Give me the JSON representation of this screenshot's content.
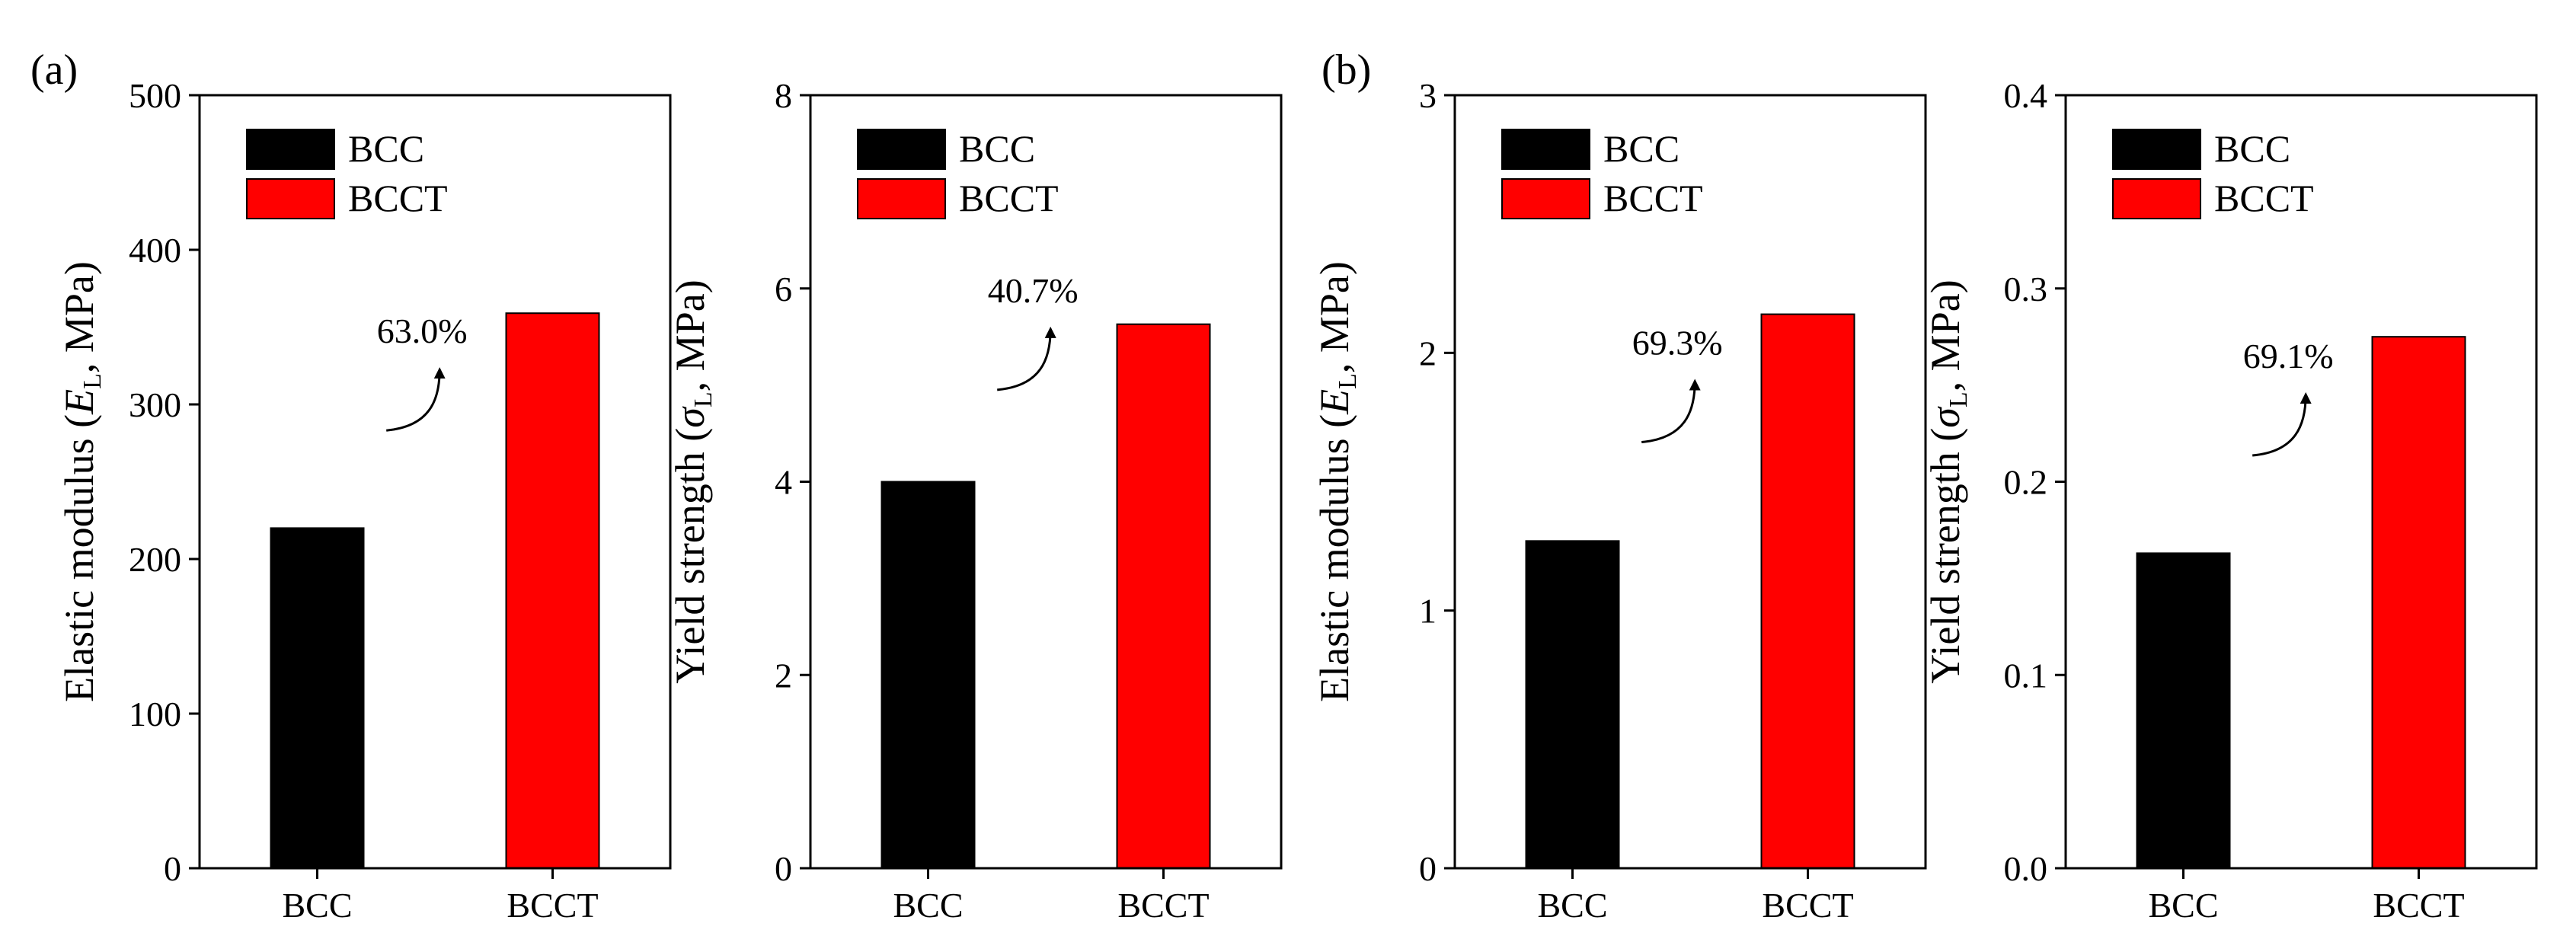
{
  "panel_labels": [
    "(a)",
    "(b)"
  ],
  "colors": {
    "BCC": "#000000",
    "BCCT": "#ff0000"
  },
  "chart_data": [
    {
      "type": "bar",
      "panel": "(a)",
      "categories": [
        "BCC",
        "BCCT"
      ],
      "values": [
        220,
        359
      ],
      "ylim": [
        0,
        500
      ],
      "yticks": [
        "0",
        "100",
        "200",
        "300",
        "400",
        "500"
      ],
      "ylabel": {
        "prefix": "Elastic modulus (",
        "symbol": "E",
        "subscript": "L",
        "suffix": ", MPa)"
      },
      "legend": [
        "BCC",
        "BCCT"
      ],
      "legend_position": "top-left",
      "annotation": "63.0%"
    },
    {
      "type": "bar",
      "panel": "(a)",
      "categories": [
        "BCC",
        "BCCT"
      ],
      "values": [
        4.0,
        5.63
      ],
      "ylim": [
        0,
        8
      ],
      "yticks": [
        "0",
        "2",
        "4",
        "6",
        "8"
      ],
      "ylabel": {
        "prefix": "Yield strength (",
        "symbol": "σ",
        "subscript": "L",
        "suffix": ", MPa)"
      },
      "legend": [
        "BCC",
        "BCCT"
      ],
      "legend_position": "top-left",
      "annotation": "40.7%"
    },
    {
      "type": "bar",
      "panel": "(b)",
      "categories": [
        "BCC",
        "BCCT"
      ],
      "values": [
        1.27,
        2.15
      ],
      "ylim": [
        0,
        3
      ],
      "yticks": [
        "0",
        "1",
        "2",
        "3"
      ],
      "ylabel": {
        "prefix": "Elastic modulus (",
        "symbol": "E",
        "subscript": "L",
        "suffix": ", MPa)"
      },
      "legend": [
        "BCC",
        "BCCT"
      ],
      "legend_position": "top-left",
      "annotation": "69.3%"
    },
    {
      "type": "bar",
      "panel": "(b)",
      "categories": [
        "BCC",
        "BCCT"
      ],
      "values": [
        0.163,
        0.275
      ],
      "ylim": [
        0,
        0.4
      ],
      "yticks": [
        "0.0",
        "0.1",
        "0.2",
        "0.3",
        "0.4"
      ],
      "ylabel": {
        "prefix": "Yield strength (",
        "symbol": "σ",
        "subscript": "L",
        "suffix": ", MPa)"
      },
      "legend": [
        "BCC",
        "BCCT"
      ],
      "legend_position": "top-left",
      "annotation": "69.1%"
    }
  ]
}
